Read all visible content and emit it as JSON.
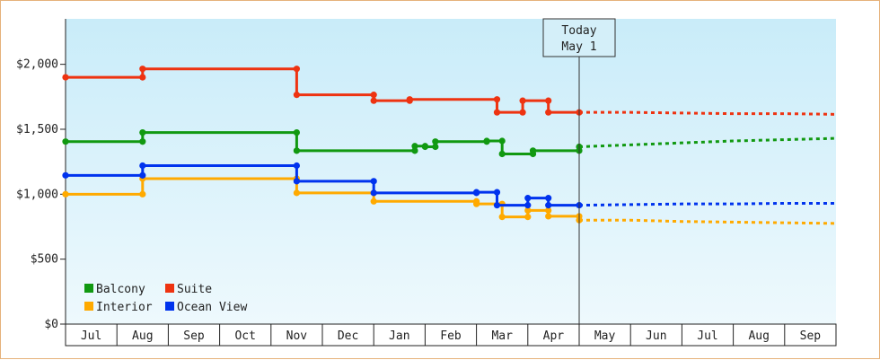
{
  "chart_data": {
    "type": "line",
    "subtype": "step",
    "ylim": [
      0,
      2350
    ],
    "y_ticks": [
      {
        "value": 0,
        "label": "$0"
      },
      {
        "value": 500,
        "label": "$500"
      },
      {
        "value": 1000,
        "label": "$1,000"
      },
      {
        "value": 1500,
        "label": "$1,500"
      },
      {
        "value": 2000,
        "label": "$2,000"
      }
    ],
    "x_range": [
      0,
      15
    ],
    "x_ticks": [
      "Jul",
      "Aug",
      "Sep",
      "Oct",
      "Nov",
      "Dec",
      "Jan",
      "Feb",
      "Mar",
      "Apr",
      "May",
      "Jun",
      "Jul",
      "Aug",
      "Sep"
    ],
    "marker": {
      "x": 10,
      "line1": "Today",
      "line2": "May 1"
    },
    "grid": false,
    "legend_position": "bottom-left",
    "series": [
      {
        "name": "Balcony",
        "color": "#119911",
        "points": [
          [
            0,
            1405
          ],
          [
            1.5,
            1405
          ],
          [
            1.5,
            1475
          ],
          [
            4.5,
            1475
          ],
          [
            4.5,
            1335
          ],
          [
            6.8,
            1335
          ],
          [
            6.8,
            1370
          ],
          [
            7.0,
            1370
          ],
          [
            7.0,
            1365
          ],
          [
            7.2,
            1365
          ],
          [
            7.2,
            1405
          ],
          [
            8.2,
            1405
          ],
          [
            8.2,
            1410
          ],
          [
            8.5,
            1410
          ],
          [
            8.5,
            1310
          ],
          [
            9.1,
            1310
          ],
          [
            9.1,
            1335
          ],
          [
            10,
            1335
          ],
          [
            10,
            1365
          ]
        ],
        "forecast": [
          [
            10,
            1365
          ],
          [
            11,
            1380
          ],
          [
            12,
            1395
          ],
          [
            13,
            1410
          ],
          [
            14,
            1420
          ],
          [
            15,
            1430
          ]
        ]
      },
      {
        "name": "Suite",
        "color": "#ee3311",
        "points": [
          [
            0,
            1900
          ],
          [
            1.5,
            1900
          ],
          [
            1.5,
            1965
          ],
          [
            4.5,
            1965
          ],
          [
            4.5,
            1765
          ],
          [
            6.0,
            1765
          ],
          [
            6.0,
            1720
          ],
          [
            6.7,
            1720
          ],
          [
            6.7,
            1730
          ],
          [
            8.4,
            1730
          ],
          [
            8.4,
            1630
          ],
          [
            8.9,
            1630
          ],
          [
            8.9,
            1720
          ],
          [
            9.4,
            1720
          ],
          [
            9.4,
            1630
          ],
          [
            10,
            1630
          ]
        ],
        "forecast": [
          [
            10,
            1630
          ],
          [
            11,
            1630
          ],
          [
            12,
            1625
          ],
          [
            13,
            1620
          ],
          [
            14,
            1620
          ],
          [
            15,
            1615
          ]
        ]
      },
      {
        "name": "Interior",
        "color": "#ffaa00",
        "points": [
          [
            0,
            1000
          ],
          [
            1.5,
            1000
          ],
          [
            1.5,
            1120
          ],
          [
            4.5,
            1120
          ],
          [
            4.5,
            1010
          ],
          [
            6.0,
            1010
          ],
          [
            6.0,
            945
          ],
          [
            8.0,
            945
          ],
          [
            8.0,
            925
          ],
          [
            8.5,
            925
          ],
          [
            8.5,
            825
          ],
          [
            9.0,
            825
          ],
          [
            9.0,
            875
          ],
          [
            9.4,
            875
          ],
          [
            9.4,
            830
          ],
          [
            10,
            830
          ],
          [
            10,
            800
          ]
        ],
        "forecast": [
          [
            10,
            800
          ],
          [
            11,
            800
          ],
          [
            12,
            790
          ],
          [
            13,
            785
          ],
          [
            14,
            780
          ],
          [
            15,
            775
          ]
        ]
      },
      {
        "name": "Ocean View",
        "color": "#0033ee",
        "points": [
          [
            0,
            1145
          ],
          [
            1.5,
            1145
          ],
          [
            1.5,
            1220
          ],
          [
            4.5,
            1220
          ],
          [
            4.5,
            1100
          ],
          [
            6.0,
            1100
          ],
          [
            6.0,
            1010
          ],
          [
            8.0,
            1010
          ],
          [
            8.0,
            1015
          ],
          [
            8.4,
            1015
          ],
          [
            8.4,
            915
          ],
          [
            9.0,
            915
          ],
          [
            9.0,
            970
          ],
          [
            9.4,
            970
          ],
          [
            9.4,
            915
          ],
          [
            10,
            915
          ]
        ],
        "forecast": [
          [
            10,
            915
          ],
          [
            11,
            920
          ],
          [
            12,
            925
          ],
          [
            13,
            925
          ],
          [
            14,
            930
          ],
          [
            15,
            930
          ]
        ]
      }
    ]
  }
}
